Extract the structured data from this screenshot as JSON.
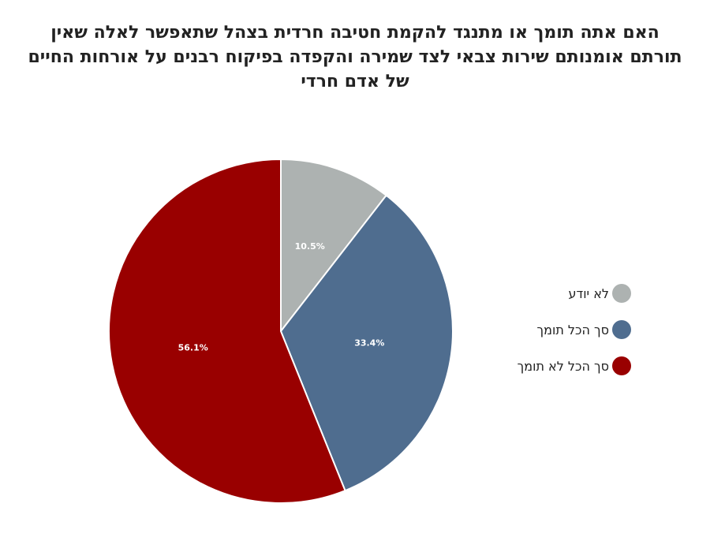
{
  "chart_data": {
    "type": "pie",
    "title": "האם אתה תומך או מתנגד להקמת חטיבה חרדית בצהל שתאפשר לאלה שאין תורתם אומנותם שירות צבאי לצד שמירה והקפדה בפיקוח רבנים על אורחות החיים של אדם חרדי",
    "slices": [
      {
        "label": "לא יודע",
        "value": 10.5,
        "display": "10.5%",
        "color": "#adb2b1"
      },
      {
        "label": "סך הכל תומך",
        "value": 33.4,
        "display": "33.4%",
        "color": "#4f6d8f"
      },
      {
        "label": "סך הכל לא תומך",
        "value": 56.1,
        "display": "56.1%",
        "color": "#990000"
      }
    ],
    "legend_position": "right"
  }
}
